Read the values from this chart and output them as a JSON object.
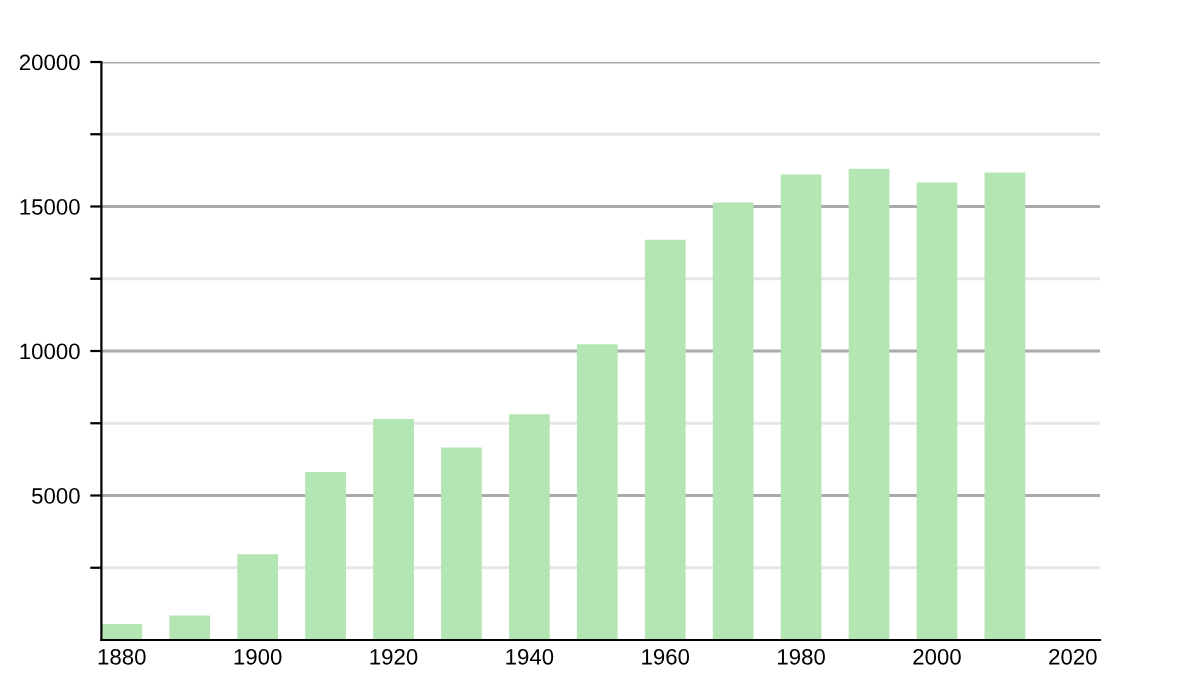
{
  "chart_data": {
    "type": "bar",
    "x": [
      1880,
      1890,
      1900,
      1910,
      1920,
      1930,
      1940,
      1950,
      1960,
      1970,
      1980,
      1990,
      2000,
      2010
    ],
    "values": [
      550,
      850,
      2970,
      5810,
      7650,
      6660,
      7810,
      10230,
      13850,
      15140,
      16110,
      16310,
      15830,
      16180
    ],
    "color": "#b3e6b3",
    "xlim": [
      1877,
      2024
    ],
    "xticks": [
      1880,
      1900,
      1920,
      1940,
      1960,
      1980,
      2000,
      2020
    ],
    "ylim": [
      0,
      20000
    ],
    "yticks": [
      {
        "value": 2500,
        "label": null
      },
      5000,
      {
        "value": 7500,
        "label": null
      },
      10000,
      {
        "value": 12500,
        "label": null
      },
      15000,
      {
        "value": 17500,
        "label": null
      },
      20000
    ],
    "grid": "y"
  }
}
